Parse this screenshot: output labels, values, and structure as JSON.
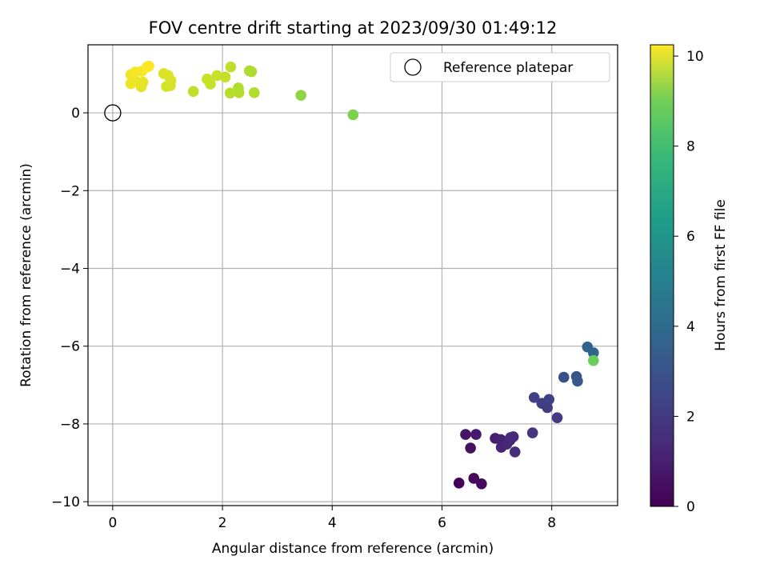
{
  "chart_data": {
    "type": "scatter",
    "title": "FOV centre drift starting at 2023/09/30 01:49:12",
    "xlabel": "Angular distance from reference (arcmin)",
    "ylabel": "Rotation from reference (arcmin)",
    "xlim": [
      -0.45,
      9.2
    ],
    "ylim": [
      -10.1,
      1.75
    ],
    "xticks": [
      0,
      2,
      4,
      6,
      8
    ],
    "yticks": [
      -10,
      -8,
      -6,
      -4,
      -2,
      0
    ],
    "xtick_labels": [
      "0",
      "2",
      "4",
      "6",
      "8"
    ],
    "ytick_labels": [
      "−10",
      "−8",
      "−6",
      "−4",
      "−2",
      "0"
    ],
    "grid": true,
    "legend": {
      "placement": "top-right",
      "entries": [
        {
          "label": "Reference platepar",
          "marker": "open-circle",
          "x": 0,
          "y": 0
        }
      ]
    },
    "colorbar": {
      "label": "Hours from first FF file",
      "colormap": "viridis",
      "range": [
        0,
        10.25
      ],
      "ticks": [
        0,
        2,
        4,
        6,
        8,
        10
      ],
      "tick_labels": [
        "0",
        "2",
        "4",
        "6",
        "8",
        "10"
      ]
    },
    "points": [
      {
        "x": 6.31,
        "y": -9.52,
        "h": 0.05
      },
      {
        "x": 6.58,
        "y": -9.4,
        "h": 0.2
      },
      {
        "x": 6.72,
        "y": -9.54,
        "h": 0.3
      },
      {
        "x": 6.52,
        "y": -8.62,
        "h": 0.45
      },
      {
        "x": 6.43,
        "y": -8.27,
        "h": 0.55
      },
      {
        "x": 6.62,
        "y": -8.27,
        "h": 0.7
      },
      {
        "x": 6.97,
        "y": -8.37,
        "h": 0.85
      },
      {
        "x": 7.07,
        "y": -8.4,
        "h": 0.95
      },
      {
        "x": 7.08,
        "y": -8.6,
        "h": 1.05
      },
      {
        "x": 7.18,
        "y": -8.52,
        "h": 1.1
      },
      {
        "x": 7.24,
        "y": -8.42,
        "h": 1.15
      },
      {
        "x": 7.3,
        "y": -8.33,
        "h": 1.2
      },
      {
        "x": 7.25,
        "y": -8.35,
        "h": 1.25
      },
      {
        "x": 7.33,
        "y": -8.72,
        "h": 1.3
      },
      {
        "x": 7.65,
        "y": -8.23,
        "h": 1.6
      },
      {
        "x": 7.68,
        "y": -7.32,
        "h": 1.95
      },
      {
        "x": 7.82,
        "y": -7.47,
        "h": 1.9
      },
      {
        "x": 7.92,
        "y": -7.58,
        "h": 1.85
      },
      {
        "x": 7.95,
        "y": -7.37,
        "h": 2.0
      },
      {
        "x": 8.1,
        "y": -7.84,
        "h": 1.75
      },
      {
        "x": 8.22,
        "y": -6.8,
        "h": 2.5
      },
      {
        "x": 8.45,
        "y": -6.78,
        "h": 2.7
      },
      {
        "x": 8.47,
        "y": -6.9,
        "h": 2.85
      },
      {
        "x": 8.65,
        "y": -6.02,
        "h": 3.2
      },
      {
        "x": 8.76,
        "y": -6.17,
        "h": 3.3
      },
      {
        "x": 8.76,
        "y": -6.37,
        "h": 7.9
      },
      {
        "x": 4.38,
        "y": -0.05,
        "h": 8.2
      },
      {
        "x": 3.43,
        "y": 0.45,
        "h": 8.5
      },
      {
        "x": 2.58,
        "y": 0.52,
        "h": 9.05
      },
      {
        "x": 2.3,
        "y": 0.52,
        "h": 9.1
      },
      {
        "x": 2.29,
        "y": 0.64,
        "h": 9.05
      },
      {
        "x": 2.14,
        "y": 0.51,
        "h": 9.15
      },
      {
        "x": 2.49,
        "y": 1.08,
        "h": 9.0
      },
      {
        "x": 2.53,
        "y": 1.06,
        "h": 9.0
      },
      {
        "x": 2.15,
        "y": 1.18,
        "h": 9.3
      },
      {
        "x": 1.47,
        "y": 0.55,
        "h": 9.3
      },
      {
        "x": 1.72,
        "y": 0.87,
        "h": 9.4
      },
      {
        "x": 1.78,
        "y": 0.74,
        "h": 9.4
      },
      {
        "x": 1.9,
        "y": 0.96,
        "h": 9.45
      },
      {
        "x": 2.05,
        "y": 0.92,
        "h": 9.35
      },
      {
        "x": 0.98,
        "y": 0.68,
        "h": 9.6
      },
      {
        "x": 1.05,
        "y": 0.7,
        "h": 9.6
      },
      {
        "x": 1.06,
        "y": 0.83,
        "h": 9.65
      },
      {
        "x": 1.01,
        "y": 0.96,
        "h": 9.7
      },
      {
        "x": 0.93,
        "y": 1.01,
        "h": 9.75
      },
      {
        "x": 0.52,
        "y": 0.67,
        "h": 9.85
      },
      {
        "x": 0.55,
        "y": 0.79,
        "h": 9.9
      },
      {
        "x": 0.45,
        "y": 0.79,
        "h": 9.95
      },
      {
        "x": 0.33,
        "y": 0.75,
        "h": 10.0
      },
      {
        "x": 0.33,
        "y": 0.98,
        "h": 10.05
      },
      {
        "x": 0.41,
        "y": 1.05,
        "h": 10.1
      },
      {
        "x": 0.53,
        "y": 1.07,
        "h": 10.15
      },
      {
        "x": 0.63,
        "y": 1.18,
        "h": 10.2
      },
      {
        "x": 0.66,
        "y": 1.2,
        "h": 10.25
      }
    ]
  }
}
